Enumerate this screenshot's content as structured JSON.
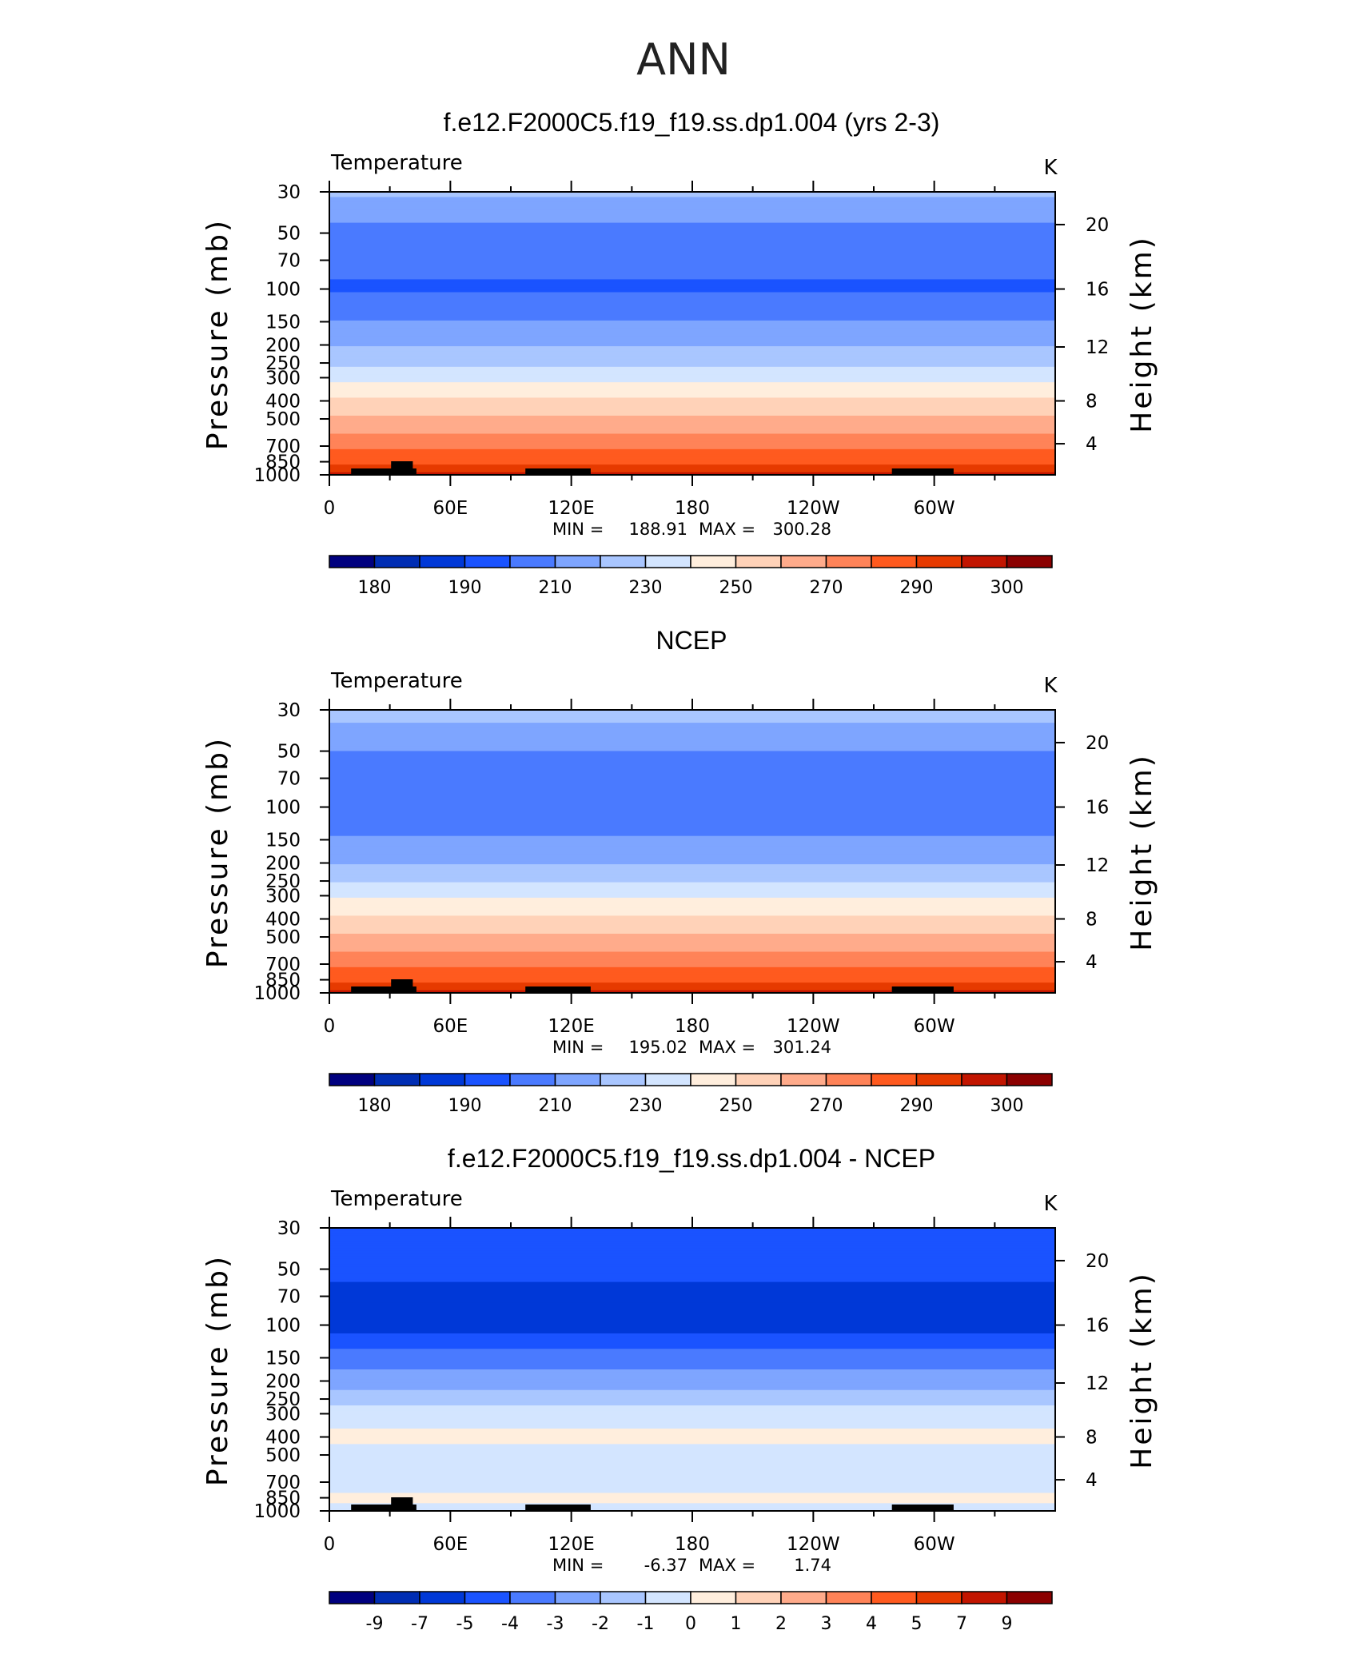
{
  "figure": {
    "title": "ANN"
  },
  "colorbar": {
    "colors": [
      "#00007f",
      "#002db3",
      "#0038d7",
      "#1a53ff",
      "#4a7aff",
      "#7ea5ff",
      "#a9c6ff",
      "#d3e5ff",
      "#ffeedd",
      "#ffd2b8",
      "#ffab8b",
      "#ff8358",
      "#ff5a1f",
      "#e63a00",
      "#c21500",
      "#8b0000"
    ],
    "abs_labels": [
      "180",
      "190",
      "210",
      "230",
      "250",
      "270",
      "290",
      "300"
    ],
    "diff_labels": [
      "-9",
      "-7",
      "-5",
      "-4",
      "-3",
      "-2",
      "-1",
      "0",
      "1",
      "2",
      "3",
      "4",
      "5",
      "7",
      "9"
    ]
  },
  "chart_data": [
    {
      "type": "heatmap",
      "title": "f.e12.F2000C5.f19_f19.ss.dp1.004 (yrs 2-3)",
      "variable": "Temperature",
      "units": "K",
      "xlabel": "",
      "ylabel": "Pressure (mb)",
      "y2label": "Height (km)",
      "x_ticks": [
        "0",
        "60E",
        "120E",
        "180",
        "120W",
        "60W"
      ],
      "y_ticks": [
        "30",
        "50",
        "70",
        "100",
        "150",
        "200",
        "250",
        "300",
        "400",
        "500",
        "700",
        "850",
        "1000"
      ],
      "y2_ticks": [
        "20",
        "16",
        "12",
        "8",
        "4"
      ],
      "min_label": "MIN =",
      "min_value": "188.91",
      "max_label": "MAX =",
      "max_value": "300.28",
      "contour_levels": [
        180,
        185,
        190,
        200,
        210,
        220,
        230,
        240,
        250,
        260,
        270,
        280,
        290,
        295,
        300
      ],
      "profile": [
        {
          "pressure": 30,
          "temperature": 222
        },
        {
          "pressure": 40,
          "temperature": 212
        },
        {
          "pressure": 50,
          "temperature": 207
        },
        {
          "pressure": 70,
          "temperature": 202
        },
        {
          "pressure": 100,
          "temperature": 199
        },
        {
          "pressure": 150,
          "temperature": 210
        },
        {
          "pressure": 200,
          "temperature": 219
        },
        {
          "pressure": 250,
          "temperature": 228
        },
        {
          "pressure": 300,
          "temperature": 238
        },
        {
          "pressure": 400,
          "temperature": 252
        },
        {
          "pressure": 500,
          "temperature": 262
        },
        {
          "pressure": 700,
          "temperature": 278
        },
        {
          "pressure": 850,
          "temperature": 288
        },
        {
          "pressure": 1000,
          "temperature": 296
        }
      ]
    },
    {
      "type": "heatmap",
      "title": "NCEP",
      "variable": "Temperature",
      "units": "K",
      "xlabel": "",
      "ylabel": "Pressure (mb)",
      "y2label": "Height (km)",
      "x_ticks": [
        "0",
        "60E",
        "120E",
        "180",
        "120W",
        "60W"
      ],
      "y_ticks": [
        "30",
        "50",
        "70",
        "100",
        "150",
        "200",
        "250",
        "300",
        "400",
        "500",
        "700",
        "850",
        "1000"
      ],
      "y2_ticks": [
        "20",
        "16",
        "12",
        "8",
        "4"
      ],
      "min_label": "MIN =",
      "min_value": "195.02",
      "max_label": "MAX =",
      "max_value": "301.24",
      "contour_levels": [
        180,
        185,
        190,
        200,
        210,
        220,
        230,
        240,
        250,
        260,
        270,
        280,
        290,
        295,
        300
      ],
      "profile": [
        {
          "pressure": 30,
          "temperature": 225
        },
        {
          "pressure": 50,
          "temperature": 210
        },
        {
          "pressure": 70,
          "temperature": 203
        },
        {
          "pressure": 100,
          "temperature": 203
        },
        {
          "pressure": 150,
          "temperature": 211
        },
        {
          "pressure": 200,
          "temperature": 220
        },
        {
          "pressure": 250,
          "temperature": 229
        },
        {
          "pressure": 300,
          "temperature": 239
        },
        {
          "pressure": 400,
          "temperature": 252
        },
        {
          "pressure": 500,
          "temperature": 262
        },
        {
          "pressure": 700,
          "temperature": 278
        },
        {
          "pressure": 850,
          "temperature": 289
        },
        {
          "pressure": 1000,
          "temperature": 297
        }
      ]
    },
    {
      "type": "heatmap",
      "title": "f.e12.F2000C5.f19_f19.ss.dp1.004 - NCEP",
      "variable": "Temperature",
      "units": "K",
      "xlabel": "",
      "ylabel": "Pressure (mb)",
      "y2label": "Height (km)",
      "x_ticks": [
        "0",
        "60E",
        "120E",
        "180",
        "120W",
        "60W"
      ],
      "y_ticks": [
        "30",
        "50",
        "70",
        "100",
        "150",
        "200",
        "250",
        "300",
        "400",
        "500",
        "700",
        "850",
        "1000"
      ],
      "y2_ticks": [
        "20",
        "16",
        "12",
        "8",
        "4"
      ],
      "min_label": "MIN =",
      "min_value": "-6.37",
      "max_label": "MAX =",
      "max_value": "1.74",
      "contour_levels": [
        -9,
        -7,
        -5,
        -4,
        -3,
        -2,
        -1,
        0,
        1,
        2,
        3,
        4,
        5,
        7,
        9
      ],
      "profile": [
        {
          "pressure": 30,
          "difference": -4.5
        },
        {
          "pressure": 50,
          "difference": -4.5
        },
        {
          "pressure": 70,
          "difference": -5.5
        },
        {
          "pressure": 100,
          "difference": -5.5
        },
        {
          "pressure": 150,
          "difference": -3.5
        },
        {
          "pressure": 200,
          "difference": -2.5
        },
        {
          "pressure": 250,
          "difference": -1.5
        },
        {
          "pressure": 300,
          "difference": -0.5
        },
        {
          "pressure": 400,
          "difference": 0.3
        },
        {
          "pressure": 500,
          "difference": -0.5
        },
        {
          "pressure": 700,
          "difference": -0.5
        },
        {
          "pressure": 850,
          "difference": 0.3
        },
        {
          "pressure": 1000,
          "difference": -0.5
        }
      ]
    }
  ]
}
